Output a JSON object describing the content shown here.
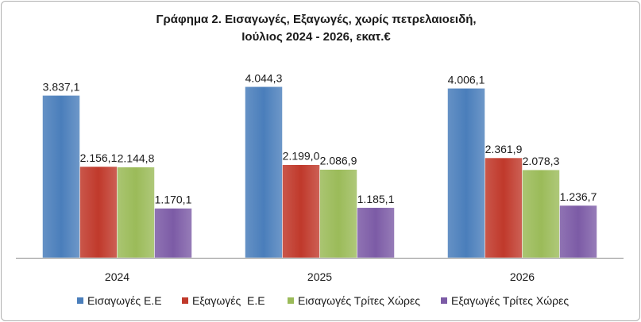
{
  "chart_data": {
    "type": "bar",
    "title_lines": [
      "Γράφημα 2. Εισαγωγές, Εξαγωγές, χωρίς πετρελαιοειδή,",
      "Ιούλιος 2024 - 2026, εκατ.€"
    ],
    "categories": [
      "2024",
      "2025",
      "2026"
    ],
    "series": [
      {
        "name": "Εισαγωγές Ε.Ε",
        "color": "#4a7ebb",
        "values": [
          3837.1,
          4044.3,
          4006.1
        ],
        "labels": [
          "3.837,1",
          "4.044,3",
          "4.006,1"
        ]
      },
      {
        "name": "Εξαγωγές  Ε.Ε",
        "color": "#c0392b",
        "values": [
          2156.1,
          2199.0,
          2361.9
        ],
        "labels": [
          "2.156,1",
          "2.199,0",
          "2.361,9"
        ]
      },
      {
        "name": "Εισαγωγές Τρίτες Χώρες",
        "color": "#9bbb59",
        "values": [
          2144.8,
          2086.9,
          2078.3
        ],
        "labels": [
          "2.144,8",
          "2.086,9",
          "2.078,3"
        ]
      },
      {
        "name": "Εξαγωγές Τρίτες Χώρες",
        "color": "#7c5ba6",
        "values": [
          1170.1,
          1185.1,
          1236.7
        ],
        "labels": [
          "1.170,1",
          "1.185,1",
          "1.236,7"
        ]
      }
    ],
    "ylim": [
      0,
      4500
    ],
    "grid": false,
    "legend_position": "bottom"
  }
}
